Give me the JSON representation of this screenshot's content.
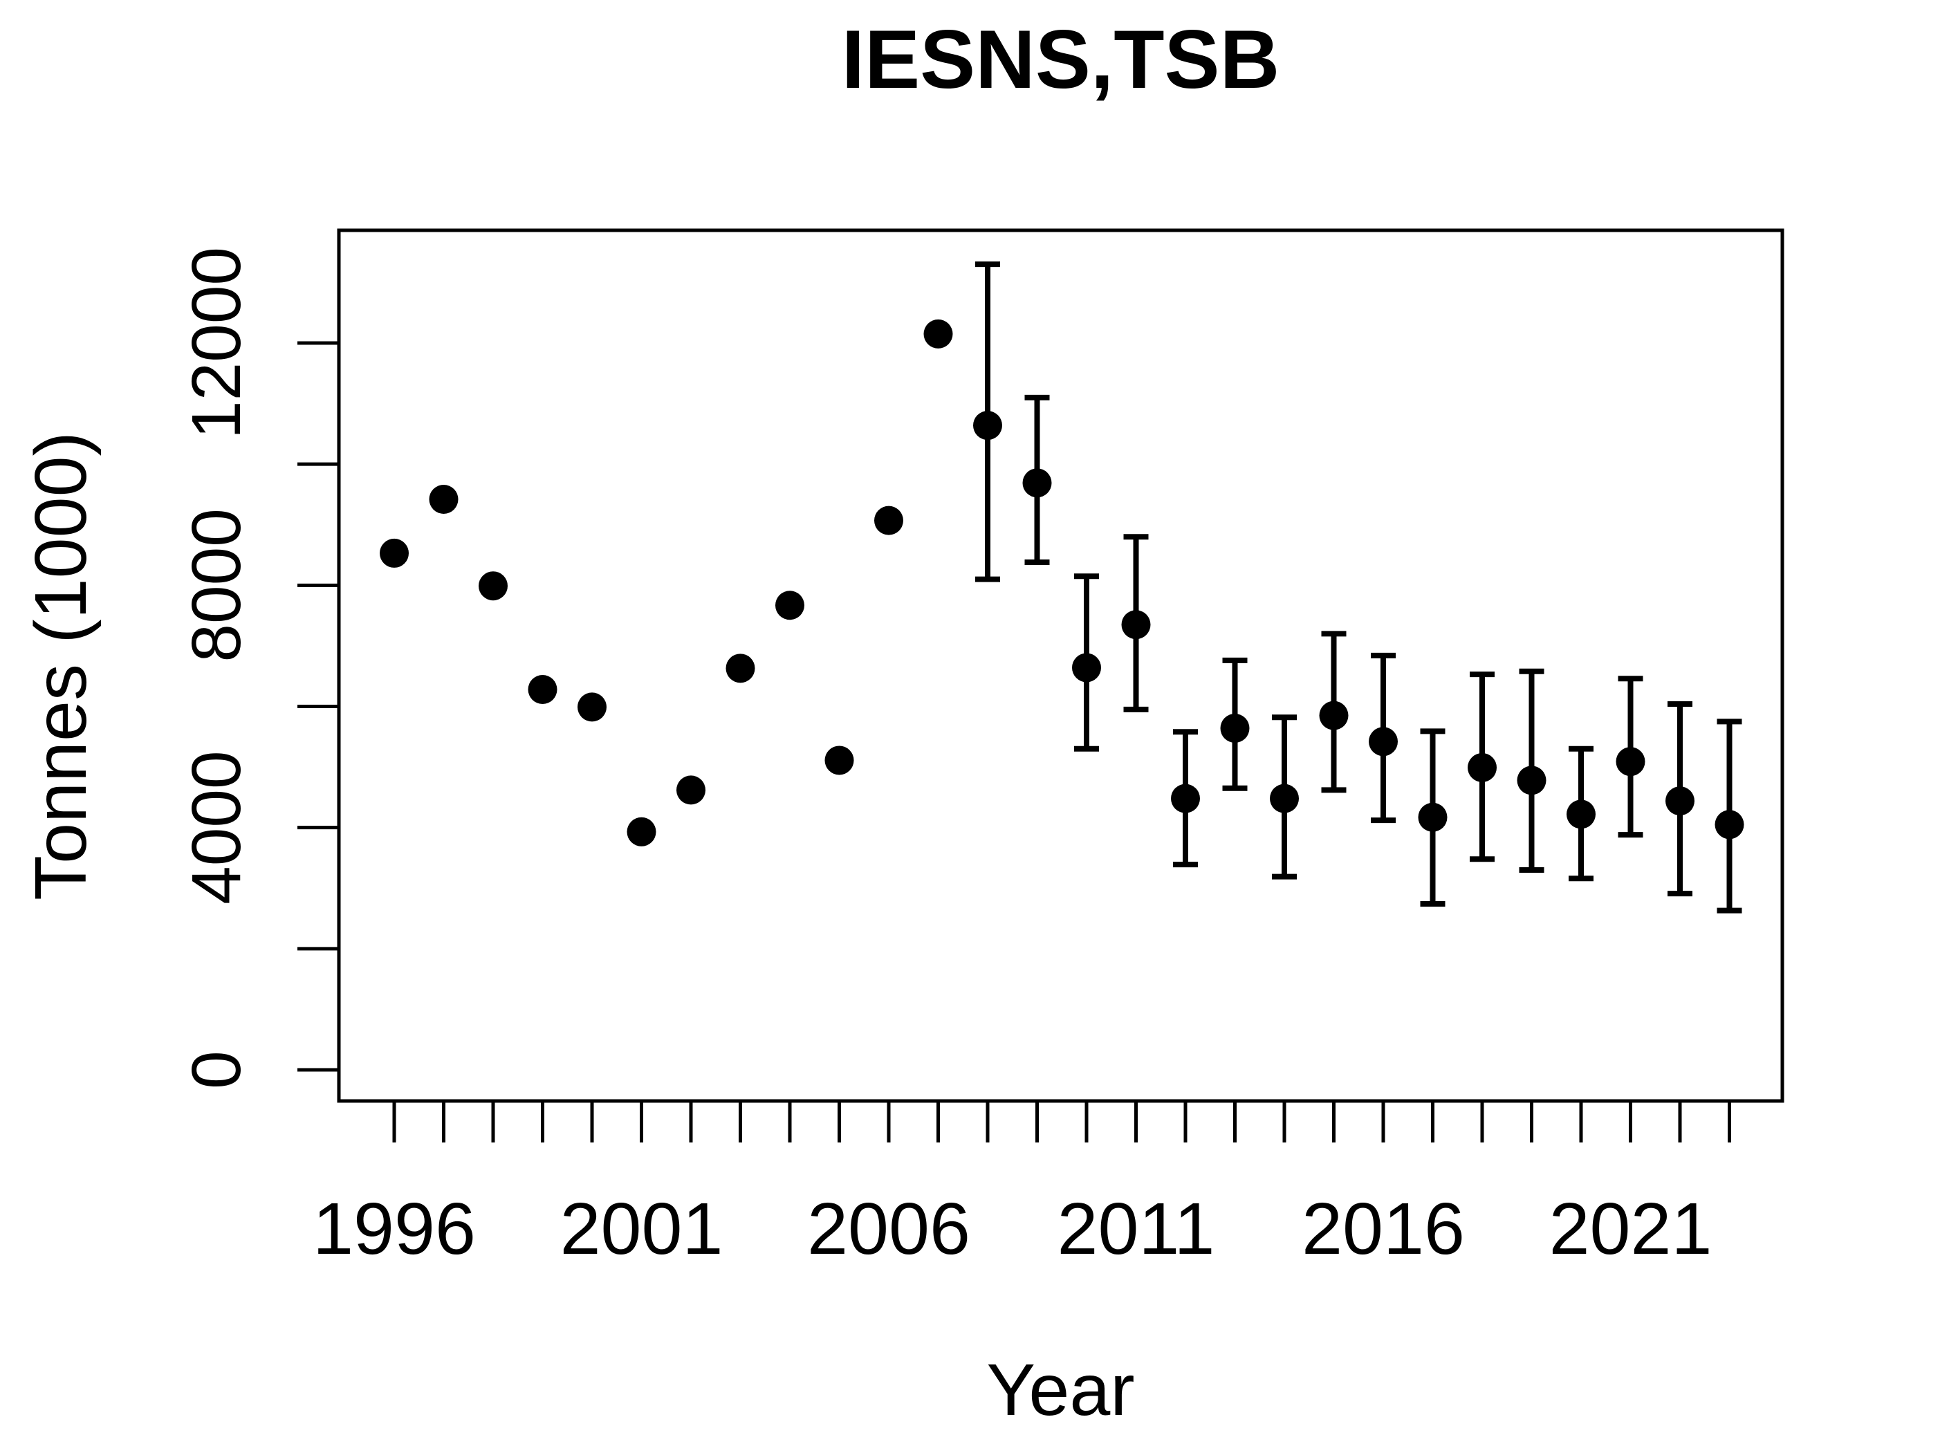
{
  "title": "IESNS,TSB",
  "chart_data": {
    "type": "scatter",
    "title": "IESNS,TSB",
    "xlabel": "Year",
    "ylabel": "Tonnes (1000)",
    "grid": false,
    "legend": null,
    "marker": "filled-circle",
    "marker_color": "#000000",
    "axis_color": "#000000",
    "xlim": [
      1994.9,
      2024.1
    ],
    "ylim": [
      -515,
      13860
    ],
    "x_tick_years": [
      1996,
      1997,
      1998,
      1999,
      2000,
      2001,
      2002,
      2003,
      2004,
      2005,
      2006,
      2007,
      2008,
      2009,
      2010,
      2011,
      2012,
      2013,
      2014,
      2015,
      2016,
      2017,
      2018,
      2019,
      2020,
      2021,
      2022,
      2023
    ],
    "x_labeled_ticks": [
      {
        "year": 1996,
        "label": "1996"
      },
      {
        "year": 2001,
        "label": "2001"
      },
      {
        "year": 2006,
        "label": "2006"
      },
      {
        "year": 2011,
        "label": "2011"
      },
      {
        "year": 2016,
        "label": "2016"
      },
      {
        "year": 2021,
        "label": "2021"
      }
    ],
    "y_ticks": [
      0,
      2000,
      4000,
      6000,
      8000,
      10000,
      12000
    ],
    "y_labeled_ticks": [
      {
        "value": 0,
        "label": "0"
      },
      {
        "value": 4000,
        "label": "4000"
      },
      {
        "value": 8000,
        "label": "8000"
      },
      {
        "value": 12000,
        "label": "12000"
      }
    ],
    "series": [
      {
        "name": "TSB",
        "points": [
          {
            "year": 1996,
            "value": 8530,
            "lo": null,
            "hi": null
          },
          {
            "year": 1997,
            "value": 9420,
            "lo": null,
            "hi": null
          },
          {
            "year": 1998,
            "value": 7990,
            "lo": null,
            "hi": null
          },
          {
            "year": 1999,
            "value": 6280,
            "lo": null,
            "hi": null
          },
          {
            "year": 2000,
            "value": 5990,
            "lo": null,
            "hi": null
          },
          {
            "year": 2001,
            "value": 3930,
            "lo": null,
            "hi": null
          },
          {
            "year": 2002,
            "value": 4620,
            "lo": null,
            "hi": null
          },
          {
            "year": 2003,
            "value": 6630,
            "lo": null,
            "hi": null
          },
          {
            "year": 2004,
            "value": 7670,
            "lo": null,
            "hi": null
          },
          {
            "year": 2005,
            "value": 5110,
            "lo": null,
            "hi": null
          },
          {
            "year": 2006,
            "value": 9070,
            "lo": null,
            "hi": null
          },
          {
            "year": 2007,
            "value": 12150,
            "lo": null,
            "hi": null
          },
          {
            "year": 2008,
            "value": 10640,
            "lo": 8100,
            "hi": 13300
          },
          {
            "year": 2009,
            "value": 9690,
            "lo": 8380,
            "hi": 11100
          },
          {
            "year": 2010,
            "value": 6640,
            "lo": 5300,
            "hi": 8150
          },
          {
            "year": 2011,
            "value": 7350,
            "lo": 5950,
            "hi": 8800
          },
          {
            "year": 2012,
            "value": 4480,
            "lo": 3390,
            "hi": 5580
          },
          {
            "year": 2013,
            "value": 5640,
            "lo": 4650,
            "hi": 6760
          },
          {
            "year": 2014,
            "value": 4480,
            "lo": 3190,
            "hi": 5820
          },
          {
            "year": 2015,
            "value": 5850,
            "lo": 4620,
            "hi": 7200
          },
          {
            "year": 2016,
            "value": 5420,
            "lo": 4120,
            "hi": 6840
          },
          {
            "year": 2017,
            "value": 4170,
            "lo": 2740,
            "hi": 5590
          },
          {
            "year": 2018,
            "value": 4990,
            "lo": 3480,
            "hi": 6530
          },
          {
            "year": 2019,
            "value": 4780,
            "lo": 3300,
            "hi": 6580
          },
          {
            "year": 2020,
            "value": 4220,
            "lo": 3160,
            "hi": 5300
          },
          {
            "year": 2021,
            "value": 5090,
            "lo": 3880,
            "hi": 6460
          },
          {
            "year": 2022,
            "value": 4440,
            "lo": 2910,
            "hi": 6040
          },
          {
            "year": 2023,
            "value": 4050,
            "lo": 2630,
            "hi": 5750
          }
        ]
      }
    ]
  }
}
